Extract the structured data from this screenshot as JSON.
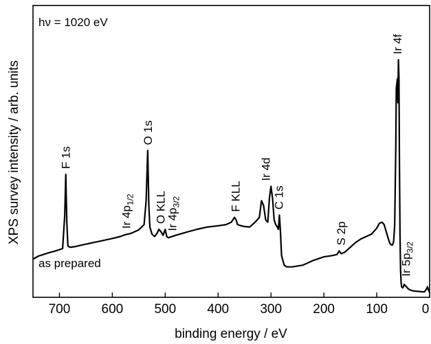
{
  "chart_data": {
    "type": "line",
    "xlabel": "binding energy / eV",
    "ylabel": "XPS survey intensity / arb. units",
    "xlim": [
      750,
      0
    ],
    "x_reversed": true,
    "ylim": [
      0,
      1
    ],
    "y_ticks_shown": false,
    "x_ticks": [
      700,
      600,
      500,
      400,
      300,
      200,
      100,
      0
    ],
    "x_tick_labels": [
      "700",
      "600",
      "500",
      "400",
      "300",
      "200",
      "100",
      "0"
    ],
    "grid": false,
    "legend": "none",
    "top_left_annotation": "hν = 1020 eV",
    "spectrum_label": "as prepared",
    "series": [
      {
        "x": [
          750,
          740,
          730,
          720,
          710,
          700,
          694,
          690,
          688,
          686,
          684,
          680,
          670,
          650,
          620,
          600,
          585,
          575,
          565,
          550,
          540,
          536,
          533,
          531,
          529,
          525,
          520,
          515,
          512,
          508,
          504,
          500,
          497,
          494,
          490,
          480,
          460,
          440,
          420,
          400,
          385,
          375,
          369,
          366,
          363,
          358,
          350,
          340,
          330,
          322,
          318,
          314,
          310,
          306,
          303,
          300,
          297,
          294,
          291,
          288,
          286,
          284,
          282,
          280,
          275,
          270,
          260,
          240,
          220,
          200,
          185,
          175,
          171,
          167,
          160,
          150,
          140,
          130,
          120,
          110,
          100,
          95,
          90,
          86,
          82,
          78,
          75,
          72,
          70,
          68,
          66,
          64,
          63,
          62,
          61,
          60,
          59,
          58,
          57,
          56,
          55,
          54,
          53,
          51,
          50,
          48,
          45,
          40,
          35,
          30,
          20,
          10,
          6,
          4,
          2,
          0
        ],
        "y": [
          0.145,
          0.158,
          0.165,
          0.172,
          0.178,
          0.185,
          0.19,
          0.33,
          0.5,
          0.3,
          0.2,
          0.195,
          0.198,
          0.208,
          0.222,
          0.232,
          0.24,
          0.248,
          0.253,
          0.268,
          0.29,
          0.39,
          0.6,
          0.37,
          0.28,
          0.25,
          0.24,
          0.255,
          0.27,
          0.26,
          0.245,
          0.27,
          0.24,
          0.235,
          0.238,
          0.245,
          0.258,
          0.27,
          0.28,
          0.285,
          0.29,
          0.3,
          0.32,
          0.31,
          0.29,
          0.286,
          0.282,
          0.28,
          0.3,
          0.32,
          0.39,
          0.37,
          0.31,
          0.3,
          0.4,
          0.45,
          0.4,
          0.31,
          0.29,
          0.28,
          0.27,
          0.33,
          0.26,
          0.16,
          0.12,
          0.113,
          0.113,
          0.12,
          0.14,
          0.155,
          0.16,
          0.165,
          0.18,
          0.168,
          0.175,
          0.195,
          0.215,
          0.23,
          0.24,
          0.25,
          0.275,
          0.295,
          0.3,
          0.29,
          0.26,
          0.23,
          0.21,
          0.205,
          0.205,
          0.22,
          0.29,
          0.62,
          0.86,
          0.88,
          0.9,
          0.8,
          0.98,
          0.9,
          0.55,
          0.25,
          0.1,
          0.05,
          0.03,
          0.025,
          0.028,
          0.04,
          0.032,
          0.02,
          0.015,
          0.012,
          0.01,
          0.008,
          0.02,
          0.03,
          0.015,
          0.005
        ]
      }
    ],
    "peak_labels": [
      {
        "x": 688,
        "y": 0.5,
        "parts": [
          {
            "t": "F 1s"
          }
        ]
      },
      {
        "x": 574,
        "y": 0.25,
        "parts": [
          {
            "t": "Ir 4p"
          },
          {
            "t": "1/2",
            "sub": true
          }
        ]
      },
      {
        "x": 533,
        "y": 0.6,
        "parts": [
          {
            "t": "O 1s"
          }
        ]
      },
      {
        "x": 509,
        "y": 0.27,
        "parts": [
          {
            "t": "O KLL"
          }
        ]
      },
      {
        "x": 487,
        "y": 0.24,
        "parts": [
          {
            "t": "Ir 4p"
          },
          {
            "t": "3/2",
            "sub": true
          }
        ]
      },
      {
        "x": 367,
        "y": 0.32,
        "parts": [
          {
            "t": "F KLL"
          }
        ]
      },
      {
        "x": 310,
        "y": 0.45,
        "parts": [
          {
            "t": "Ir 4d"
          }
        ]
      },
      {
        "x": 285,
        "y": 0.33,
        "parts": [
          {
            "t": "C 1s"
          }
        ]
      },
      {
        "x": 168,
        "y": 0.18,
        "parts": [
          {
            "t": "S 2p"
          }
        ]
      },
      {
        "x": 61,
        "y": 0.98,
        "parts": [
          {
            "t": "Ir 4f"
          }
        ]
      },
      {
        "x": 45,
        "y": 0.05,
        "parts": [
          {
            "t": "Ir 5p"
          },
          {
            "t": "3/2",
            "sub": true
          }
        ]
      }
    ]
  }
}
